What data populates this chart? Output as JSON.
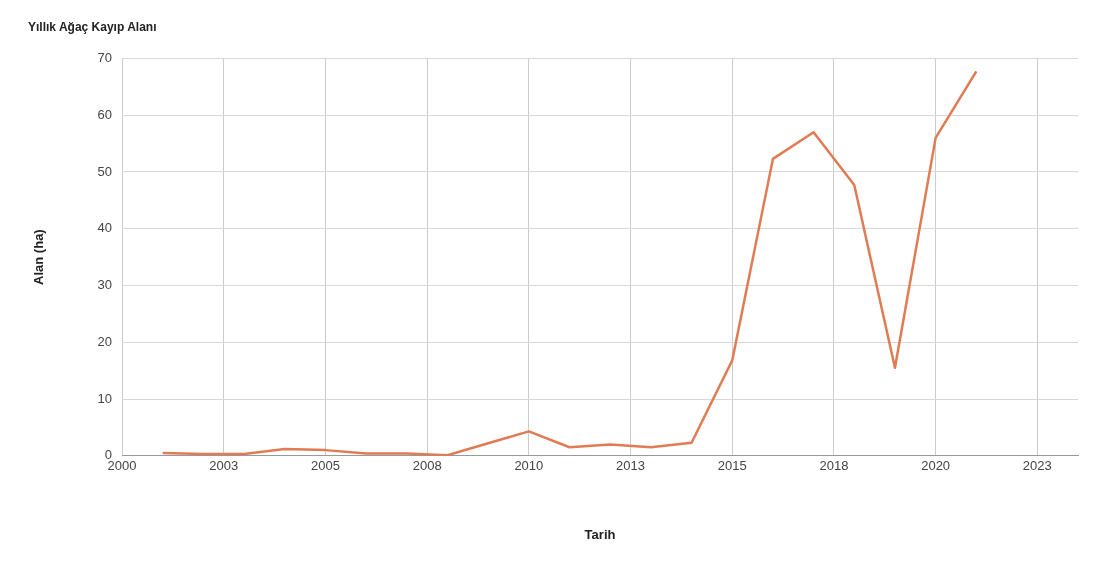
{
  "chart_data": {
    "type": "line",
    "title": "Yıllık Ağaç Kayıp Alanı",
    "xlabel": "Tarih",
    "ylabel": "Alan (ha)",
    "x": [
      2001,
      2002,
      2003,
      2004,
      2005,
      2006,
      2007,
      2008,
      2009,
      2010,
      2011,
      2012,
      2013,
      2014,
      2015,
      2016,
      2017,
      2018,
      2019,
      2020,
      2021
    ],
    "series": [
      {
        "color": "#e07b53",
        "values": [
          0.5,
          0.3,
          0.3,
          1.2,
          1.0,
          0.4,
          0.4,
          0.1,
          2.2,
          4.3,
          1.5,
          2.0,
          1.5,
          2.3,
          16.8,
          52.3,
          57.0,
          47.7,
          15.5,
          56.0,
          67.7
        ]
      }
    ],
    "xlim": [
      2000,
      2023.5
    ],
    "xticks": [
      2000,
      {
        "value": 2002.5,
        "label": "2003"
      },
      2005,
      {
        "value": 2007.5,
        "label": "2008"
      },
      2010,
      {
        "value": 2012.5,
        "label": "2013"
      },
      2015,
      {
        "value": 2017.5,
        "label": "2018"
      },
      2020,
      {
        "value": 2022.5,
        "label": "2023"
      }
    ],
    "ylim": [
      0,
      70
    ],
    "yticks": [
      0,
      10,
      20,
      30,
      40,
      50,
      60,
      70
    ],
    "grid": true,
    "legend": false,
    "marker": "none",
    "line_style": "solid"
  }
}
